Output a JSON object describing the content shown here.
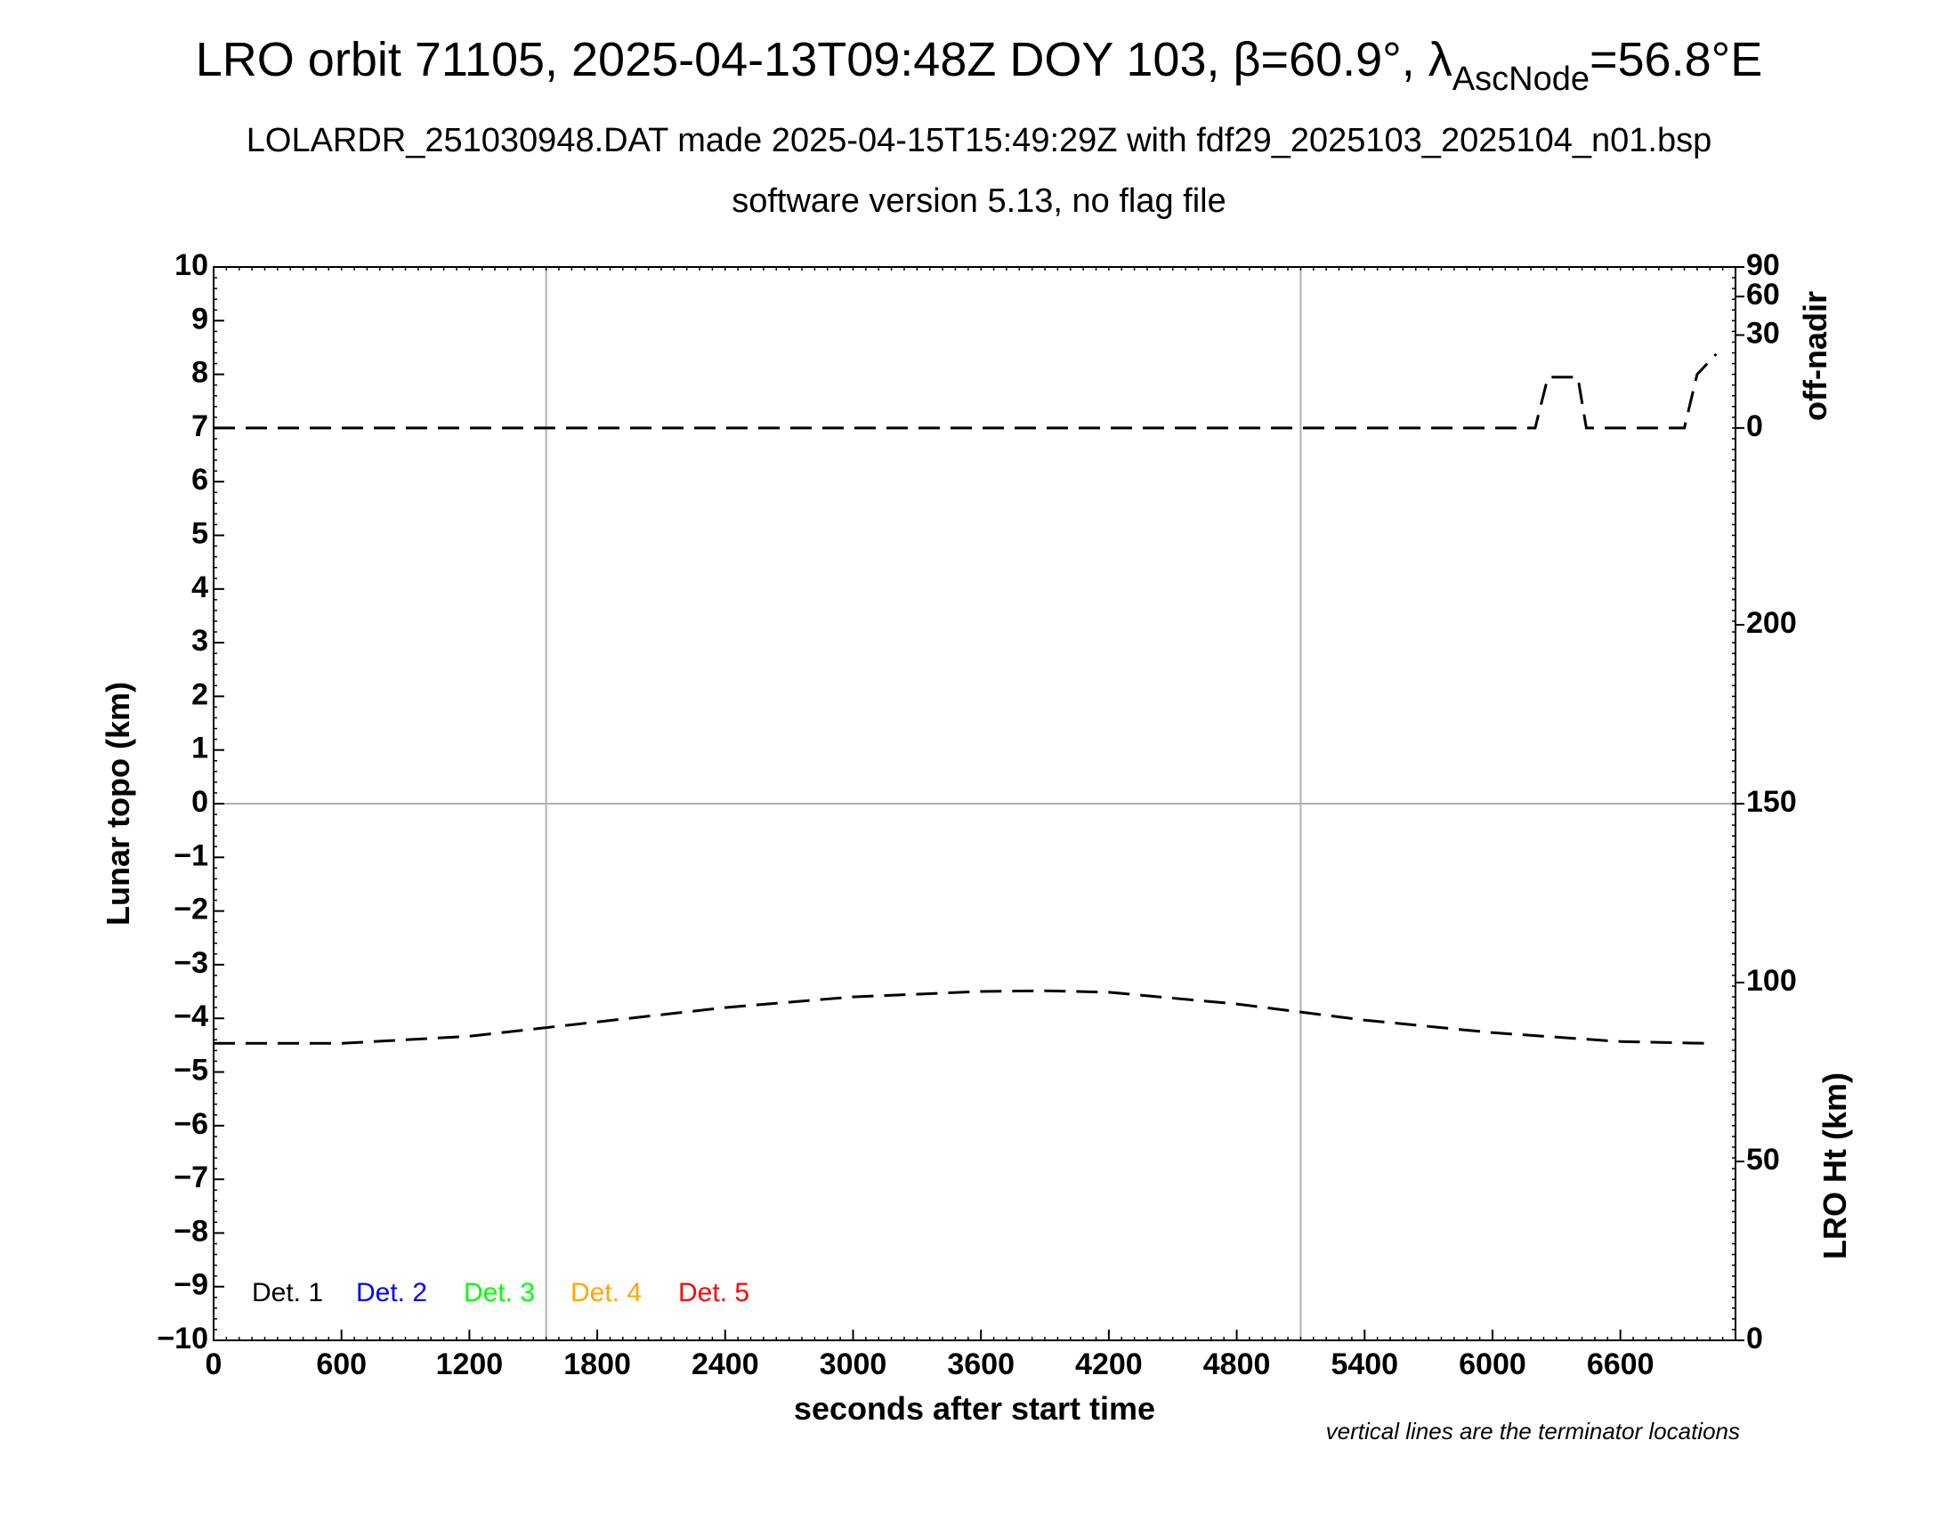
{
  "header": {
    "title_main": "LRO orbit 71105, 2025-04-13T09:48Z DOY 103, β=60.9°, λ",
    "title_sub": "AscNode",
    "title_end": "=56.8°E",
    "subtitle": "LOLARDR_251030948.DAT made 2025-04-15T15:49:29Z with fdf29_2025103_2025104_n01.bsp",
    "subtitle2": "software version 5.13, no flag file"
  },
  "footer_note": "vertical lines are the terminator locations",
  "chart_data": {
    "type": "line",
    "xlabel": "seconds after start time",
    "ylabel": "Lunar topo (km)",
    "right_upper_label": "off-nadir",
    "right_lower_label": "LRO Ht (km)",
    "xlim": [
      0,
      7140
    ],
    "ylim": [
      -10,
      10
    ],
    "x_ticks": [
      0,
      600,
      1200,
      1800,
      2400,
      3000,
      3600,
      4200,
      4800,
      5400,
      6000,
      6600
    ],
    "y_ticks": [
      10,
      9,
      8,
      7,
      6,
      5,
      4,
      3,
      2,
      1,
      0,
      -1,
      -2,
      -3,
      -4,
      -5,
      -6,
      -7,
      -8,
      -9,
      -10
    ],
    "y_tick_labels": [
      "10",
      "9",
      "8",
      "7",
      "6",
      "5",
      "4",
      "3",
      "2",
      "1",
      "0",
      "−1",
      "−2",
      "−3",
      "−4",
      "−5",
      "−6",
      "−7",
      "−8",
      "−9",
      "−10"
    ],
    "off_nadir_ticks": [
      90,
      60,
      30,
      0
    ],
    "off_nadir_range": [
      0,
      90
    ],
    "ht_ticks": [
      200,
      150,
      100,
      50,
      0
    ],
    "ht_range": [
      0,
      300
    ],
    "terminator_x": [
      1560,
      5100
    ],
    "grid": {
      "horizontal_zero_line": true,
      "vertical_terminators": true
    },
    "legend": [
      {
        "label": "Det. 1",
        "color": "#000000"
      },
      {
        "label": "Det. 2",
        "color": "#0000ff"
      },
      {
        "label": "Det. 3",
        "color": "#00ff00"
      },
      {
        "label": "Det. 4",
        "color": "#ffa500"
      },
      {
        "label": "Det. 5",
        "color": "#ff0000"
      }
    ],
    "series": [
      {
        "name": "off-nadir",
        "axis": "off-nadir",
        "style": "dashed",
        "x": [
          0,
          1000,
          2000,
          3000,
          4000,
          5000,
          6000,
          6200,
          6260,
          6400,
          6440,
          6600,
          6880,
          6900,
          6960,
          7050
        ],
        "values": [
          0,
          0,
          0,
          0,
          0,
          0,
          0,
          0,
          9,
          9,
          0,
          0,
          0,
          0,
          10,
          19
        ]
      },
      {
        "name": "LRO Ht",
        "axis": "LRO Ht",
        "style": "dashed",
        "x": [
          0,
          600,
          1200,
          1800,
          2400,
          3000,
          3600,
          3900,
          4200,
          4800,
          5400,
          6000,
          6600,
          7000
        ],
        "values": [
          83,
          83,
          85,
          89,
          93,
          96,
          97.5,
          97.7,
          97.3,
          94,
          89.5,
          86,
          83.5,
          83
        ]
      }
    ]
  }
}
